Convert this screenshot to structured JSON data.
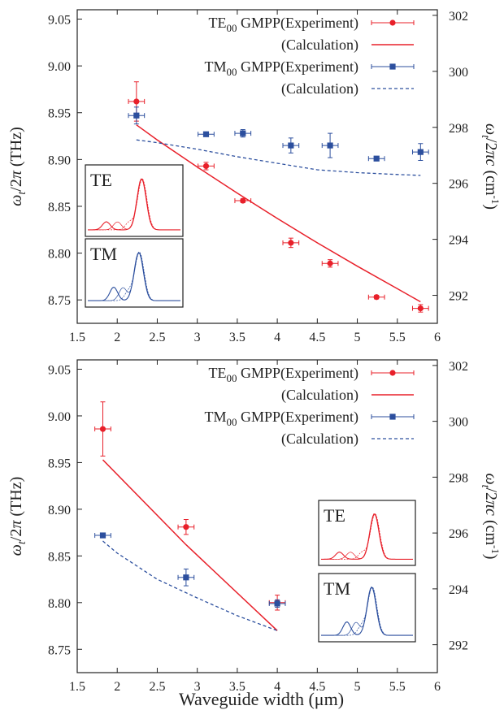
{
  "colors": {
    "te": "#e8202a",
    "tm": "#2c4f9e",
    "axis": "#222222"
  },
  "legend": {
    "te_exp": {
      "prefix": "TE",
      "sub": "00",
      "suffix": " GMPP(Experiment)"
    },
    "te_calc": "(Calculation)",
    "tm_exp": {
      "prefix": "TM",
      "sub": "00",
      "suffix": " GMPP(Experiment)"
    },
    "tm_calc": "(Calculation)"
  },
  "axes": {
    "left_ylabel": "ω_t/2π (THz)",
    "right_ylabel": "ω_t/2πc (cm^-1)",
    "xlabel": "Waveguide width (μm)",
    "x_ticks": [
      "1.5",
      "2",
      "2.5",
      "3",
      "3.5",
      "4",
      "4.5",
      "5",
      "5.5",
      "6"
    ],
    "y_ticks": [
      "8.75",
      "8.80",
      "8.85",
      "8.90",
      "8.95",
      "9.00",
      "9.05"
    ],
    "y2_ticks": [
      "292",
      "294",
      "296",
      "298",
      "300",
      "302"
    ]
  },
  "insets": {
    "te_label": "TE",
    "tm_label": "TM"
  },
  "chart_data": [
    {
      "type": "scatter",
      "xlim": [
        1.5,
        6
      ],
      "ylim": [
        8.725,
        9.06
      ],
      "y2lim": [
        291.0,
        302.2
      ],
      "grid": false,
      "legend_position": "top-right",
      "series": [
        {
          "name": "TE00 GMPP(Experiment)",
          "kind": "points",
          "marker": "circle",
          "color": "#e8202a",
          "x": [
            2.24,
            3.11,
            3.57,
            4.17,
            4.66,
            5.24,
            5.79
          ],
          "y": [
            8.962,
            8.893,
            8.856,
            8.811,
            8.789,
            8.753,
            8.741
          ],
          "xerr": [
            0.1,
            0.1,
            0.1,
            0.1,
            0.1,
            0.1,
            0.1
          ],
          "yerr": [
            0.021,
            0.004,
            0.002,
            0.005,
            0.004,
            0.002,
            0.004
          ]
        },
        {
          "name": "(Calculation)",
          "kind": "line",
          "style": "solid",
          "color": "#e8202a",
          "x": [
            2.24,
            2.5,
            3.0,
            3.5,
            4.0,
            4.5,
            5.0,
            5.5,
            5.79
          ],
          "y": [
            8.937,
            8.921,
            8.892,
            8.864,
            8.837,
            8.811,
            8.786,
            8.762,
            8.748
          ]
        },
        {
          "name": "TM00 GMPP(Experiment)",
          "kind": "points",
          "marker": "square",
          "color": "#2c4f9e",
          "x": [
            2.24,
            3.11,
            3.57,
            4.17,
            4.66,
            5.24,
            5.79
          ],
          "y": [
            8.947,
            8.927,
            8.928,
            8.915,
            8.915,
            8.901,
            8.908
          ],
          "xerr": [
            0.1,
            0.1,
            0.1,
            0.1,
            0.1,
            0.1,
            0.1
          ],
          "yerr": [
            0.009,
            0.002,
            0.004,
            0.008,
            0.013,
            0.002,
            0.009
          ]
        },
        {
          "name": "(Calculation)",
          "kind": "line",
          "style": "dashed",
          "color": "#2c4f9e",
          "x": [
            2.24,
            2.5,
            3.0,
            3.5,
            4.0,
            4.5,
            5.0,
            5.5,
            5.79
          ],
          "y": [
            8.921,
            8.918,
            8.911,
            8.903,
            8.896,
            8.889,
            8.886,
            8.884,
            8.883
          ]
        }
      ]
    },
    {
      "type": "scatter",
      "xlim": [
        1.5,
        6
      ],
      "ylim": [
        8.725,
        9.06
      ],
      "y2lim": [
        291.0,
        302.2
      ],
      "grid": false,
      "legend_position": "top-right",
      "series": [
        {
          "name": "TE00 GMPP(Experiment)",
          "kind": "points",
          "marker": "circle",
          "color": "#e8202a",
          "x": [
            1.82,
            2.86,
            4.0
          ],
          "y": [
            8.986,
            8.881,
            8.8
          ],
          "xerr": [
            0.1,
            0.1,
            0.1
          ],
          "yerr": [
            0.029,
            0.008,
            0.008
          ]
        },
        {
          "name": "(Calculation)",
          "kind": "line",
          "style": "solid",
          "color": "#e8202a",
          "x": [
            1.82,
            2.86,
            4.0
          ],
          "y": [
            8.953,
            8.862,
            8.77
          ]
        },
        {
          "name": "TM00 GMPP(Experiment)",
          "kind": "points",
          "marker": "square",
          "color": "#2c4f9e",
          "x": [
            1.82,
            2.86,
            4.0
          ],
          "y": [
            8.872,
            8.827,
            8.799
          ],
          "xerr": [
            0.1,
            0.1,
            0.1
          ],
          "yerr": [
            0.002,
            0.009,
            0.004
          ]
        },
        {
          "name": "(Calculation)",
          "kind": "line",
          "style": "dashed",
          "color": "#2c4f9e",
          "x": [
            1.82,
            2.0,
            2.5,
            3.0,
            3.5,
            4.0
          ],
          "y": [
            8.866,
            8.853,
            8.825,
            8.805,
            8.786,
            8.77
          ]
        }
      ]
    }
  ]
}
